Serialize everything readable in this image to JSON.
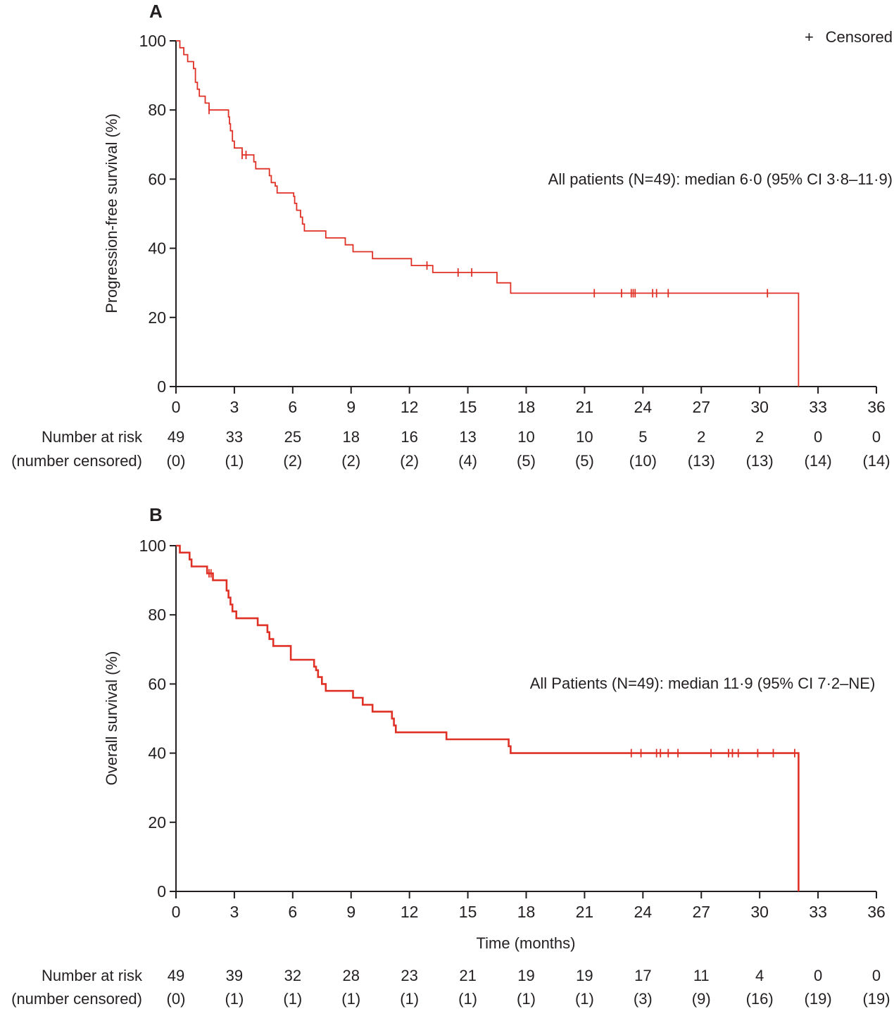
{
  "legend": {
    "symbol": "+",
    "label": "Censored"
  },
  "chart_data": [
    {
      "panel": "A",
      "type": "line",
      "step": true,
      "ylabel": "Progression-free survival (%)",
      "xlabel": "",
      "xlim": [
        0,
        36
      ],
      "ylim": [
        0,
        100
      ],
      "xticks": [
        0,
        3,
        6,
        9,
        12,
        15,
        18,
        21,
        24,
        27,
        30,
        33,
        36
      ],
      "yticks": [
        0,
        20,
        40,
        60,
        80,
        100
      ],
      "grid": false,
      "line_color": "#e03127",
      "annotation": "All patients (N=49): median 6·0 (95% CI 3·8–11·9)",
      "series": [
        {
          "steps": [
            [
              0,
              100
            ],
            [
              0.2,
              98
            ],
            [
              0.4,
              96
            ],
            [
              0.6,
              94
            ],
            [
              0.9,
              92
            ],
            [
              1.0,
              88
            ],
            [
              1.1,
              86
            ],
            [
              1.2,
              84
            ],
            [
              1.4,
              84
            ],
            [
              1.5,
              82
            ],
            [
              1.7,
              80
            ],
            [
              2.6,
              80
            ],
            [
              2.7,
              78
            ],
            [
              2.75,
              76
            ],
            [
              2.8,
              74
            ],
            [
              2.9,
              71
            ],
            [
              3.0,
              69
            ],
            [
              3.3,
              69
            ],
            [
              3.4,
              67
            ],
            [
              4.0,
              65
            ],
            [
              4.1,
              63
            ],
            [
              4.7,
              63
            ],
            [
              4.8,
              61
            ],
            [
              4.9,
              59
            ],
            [
              5.1,
              58
            ],
            [
              5.2,
              56
            ],
            [
              6.0,
              56
            ],
            [
              6.05,
              55
            ],
            [
              6.1,
              53
            ],
            [
              6.2,
              51
            ],
            [
              6.4,
              49
            ],
            [
              6.5,
              47
            ],
            [
              6.6,
              45
            ],
            [
              7.6,
              45
            ],
            [
              7.7,
              43
            ],
            [
              8.6,
              43
            ],
            [
              8.7,
              41
            ],
            [
              9.0,
              41
            ],
            [
              9.1,
              39
            ],
            [
              10.0,
              39
            ],
            [
              10.1,
              37
            ],
            [
              12.0,
              37
            ],
            [
              12.1,
              35
            ],
            [
              13.1,
              35
            ],
            [
              13.2,
              33
            ],
            [
              16.4,
              33
            ],
            [
              16.5,
              30
            ],
            [
              17.1,
              30
            ],
            [
              17.2,
              27
            ],
            [
              32.0,
              27
            ],
            [
              32.0,
              0
            ]
          ],
          "censored": [
            [
              1.7,
              80
            ],
            [
              3.4,
              67
            ],
            [
              3.6,
              67
            ],
            [
              12.9,
              35
            ],
            [
              14.5,
              33
            ],
            [
              15.2,
              33
            ],
            [
              21.5,
              27
            ],
            [
              22.9,
              27
            ],
            [
              23.4,
              27
            ],
            [
              23.5,
              27
            ],
            [
              23.6,
              27
            ],
            [
              24.5,
              27
            ],
            [
              24.7,
              27
            ],
            [
              25.3,
              27
            ],
            [
              30.4,
              27
            ]
          ]
        }
      ],
      "risk_table": {
        "label_top": "Number at risk",
        "label_bottom": "(number censored)",
        "at_risk": [
          "49",
          "33",
          "25",
          "18",
          "16",
          "13",
          "10",
          "10",
          "5",
          "2",
          "2",
          "0",
          "0"
        ],
        "censored": [
          "(0)",
          "(1)",
          "(2)",
          "(2)",
          "(2)",
          "(4)",
          "(5)",
          "(5)",
          "(10)",
          "(13)",
          "(13)",
          "(14)",
          "(14)"
        ]
      }
    },
    {
      "panel": "B",
      "type": "line",
      "step": true,
      "ylabel": "Overall survival (%)",
      "xlabel": "Time (months)",
      "xlim": [
        0,
        36
      ],
      "ylim": [
        0,
        100
      ],
      "xticks": [
        0,
        3,
        6,
        9,
        12,
        15,
        18,
        21,
        24,
        27,
        30,
        33,
        36
      ],
      "yticks": [
        0,
        20,
        40,
        60,
        80,
        100
      ],
      "grid": false,
      "line_color": "#e03127",
      "annotation": "All Patients (N=49): median 11·9 (95% CI 7·2–NE)",
      "series": [
        {
          "steps": [
            [
              0,
              100
            ],
            [
              0.2,
              98
            ],
            [
              0.7,
              96
            ],
            [
              0.8,
              94
            ],
            [
              1.5,
              94
            ],
            [
              1.6,
              92
            ],
            [
              1.8,
              92
            ],
            [
              1.9,
              90
            ],
            [
              2.5,
              90
            ],
            [
              2.6,
              87
            ],
            [
              2.7,
              85
            ],
            [
              2.8,
              83
            ],
            [
              2.9,
              81
            ],
            [
              3.1,
              79
            ],
            [
              4.1,
              79
            ],
            [
              4.2,
              77
            ],
            [
              4.6,
              77
            ],
            [
              4.7,
              75
            ],
            [
              4.8,
              73
            ],
            [
              5.0,
              71
            ],
            [
              5.8,
              71
            ],
            [
              5.9,
              67
            ],
            [
              7.0,
              67
            ],
            [
              7.1,
              65
            ],
            [
              7.2,
              64
            ],
            [
              7.3,
              62
            ],
            [
              7.5,
              60
            ],
            [
              7.7,
              58
            ],
            [
              9.0,
              58
            ],
            [
              9.1,
              56
            ],
            [
              9.5,
              56
            ],
            [
              9.6,
              54
            ],
            [
              10.0,
              54
            ],
            [
              10.1,
              52
            ],
            [
              11.0,
              52
            ],
            [
              11.1,
              50
            ],
            [
              11.2,
              48
            ],
            [
              11.3,
              46
            ],
            [
              13.8,
              46
            ],
            [
              13.9,
              44
            ],
            [
              17.0,
              44
            ],
            [
              17.1,
              42
            ],
            [
              17.2,
              40
            ],
            [
              32.0,
              40
            ],
            [
              32.0,
              0
            ]
          ],
          "censored": [
            [
              1.7,
              92
            ],
            [
              1.8,
              92
            ],
            [
              23.4,
              40
            ],
            [
              23.9,
              40
            ],
            [
              24.7,
              40
            ],
            [
              24.9,
              40
            ],
            [
              25.3,
              40
            ],
            [
              25.8,
              40
            ],
            [
              27.5,
              40
            ],
            [
              28.4,
              40
            ],
            [
              28.6,
              40
            ],
            [
              28.9,
              40
            ],
            [
              29.9,
              40
            ],
            [
              30.7,
              40
            ],
            [
              31.8,
              40
            ]
          ]
        }
      ],
      "risk_table": {
        "label_top": "Number at risk",
        "label_bottom": "(number censored)",
        "at_risk": [
          "49",
          "39",
          "32",
          "28",
          "23",
          "21",
          "19",
          "19",
          "17",
          "11",
          "4",
          "0",
          "0"
        ],
        "censored": [
          "(0)",
          "(1)",
          "(1)",
          "(1)",
          "(1)",
          "(1)",
          "(1)",
          "(1)",
          "(3)",
          "(9)",
          "(16)",
          "(19)",
          "(19)"
        ]
      }
    }
  ]
}
